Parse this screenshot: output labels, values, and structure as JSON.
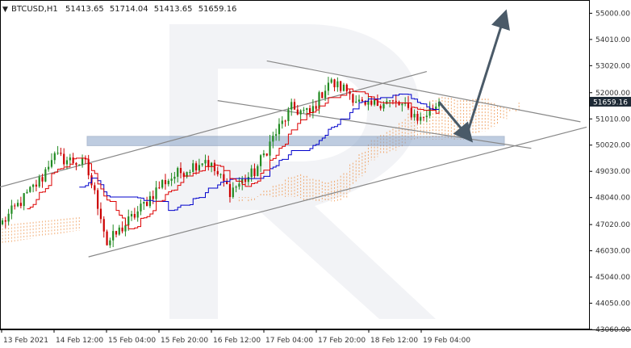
{
  "header": {
    "symbol": "BTCUSD,H1",
    "open": "51413.65",
    "high": "51714.04",
    "low": "51413.65",
    "close": "51659.16"
  },
  "current_price_label": "51659.16",
  "colors": {
    "bull": "#228B22",
    "bear": "#cc0000",
    "tenkan": "#dd0000",
    "kijun": "#0000cc",
    "cloud": "#f0a060",
    "trendline": "#888888",
    "zone": "#8aa4c8",
    "arrow": "#4a5a68",
    "price_tag": "#1e2a36"
  },
  "chart_data": {
    "type": "candlestick",
    "title": "BTCUSD,H1",
    "ylim": [
      43060,
      55500
    ],
    "y_ticks": [
      "55000.00",
      "54010.00",
      "53020.00",
      "52000.00",
      "51010.00",
      "50020.00",
      "49030.00",
      "48040.00",
      "47020.00",
      "46030.00",
      "45040.00",
      "44050.00",
      "43060.00"
    ],
    "x_ticks": [
      "13 Feb 2021",
      "14 Feb 12:00",
      "15 Feb 04:00",
      "15 Feb 20:00",
      "16 Feb 12:00",
      "17 Feb 04:00",
      "17 Feb 20:00",
      "18 Feb 12:00",
      "19 Feb 04:00"
    ],
    "last_price": 51659.16,
    "key_points": [
      {
        "t": 0,
        "price": 47100
      },
      {
        "t": 13,
        "price": 48800
      },
      {
        "t": 16,
        "price": 49600
      },
      {
        "t": 27,
        "price": 49300
      },
      {
        "t": 32,
        "price": 47400
      },
      {
        "t": 34,
        "price": 46300
      },
      {
        "t": 44,
        "price": 47500
      },
      {
        "t": 52,
        "price": 48600
      },
      {
        "t": 58,
        "price": 49000
      },
      {
        "t": 66,
        "price": 49500
      },
      {
        "t": 74,
        "price": 48300
      },
      {
        "t": 82,
        "price": 49000
      },
      {
        "t": 88,
        "price": 50300
      },
      {
        "t": 94,
        "price": 51400
      },
      {
        "t": 100,
        "price": 51200
      },
      {
        "t": 106,
        "price": 52400
      },
      {
        "t": 112,
        "price": 52100
      },
      {
        "t": 118,
        "price": 51400
      },
      {
        "t": 124,
        "price": 51700
      },
      {
        "t": 130,
        "price": 51500
      },
      {
        "t": 136,
        "price": 51000
      },
      {
        "t": 142,
        "price": 51650
      }
    ],
    "forecast": [
      {
        "t": 142,
        "price": 51650
      },
      {
        "t": 151,
        "price": 50400
      },
      {
        "t": 163,
        "price": 54800
      }
    ],
    "channel_lines": [
      {
        "p1": {
          "t": -2,
          "price": 48400
        },
        "p2": {
          "t": 138,
          "price": 52800
        }
      },
      {
        "p1": {
          "t": 28,
          "price": 45800
        },
        "p2": {
          "t": 190,
          "price": 50700
        }
      },
      {
        "p1": {
          "t": 86,
          "price": 53200
        },
        "p2": {
          "t": 188,
          "price": 50900
        }
      },
      {
        "p1": {
          "t": 70,
          "price": 51700
        },
        "p2": {
          "t": 172,
          "price": 49900
        }
      }
    ],
    "support_zone": {
      "price_low": 50000,
      "price_high": 50350
    }
  }
}
